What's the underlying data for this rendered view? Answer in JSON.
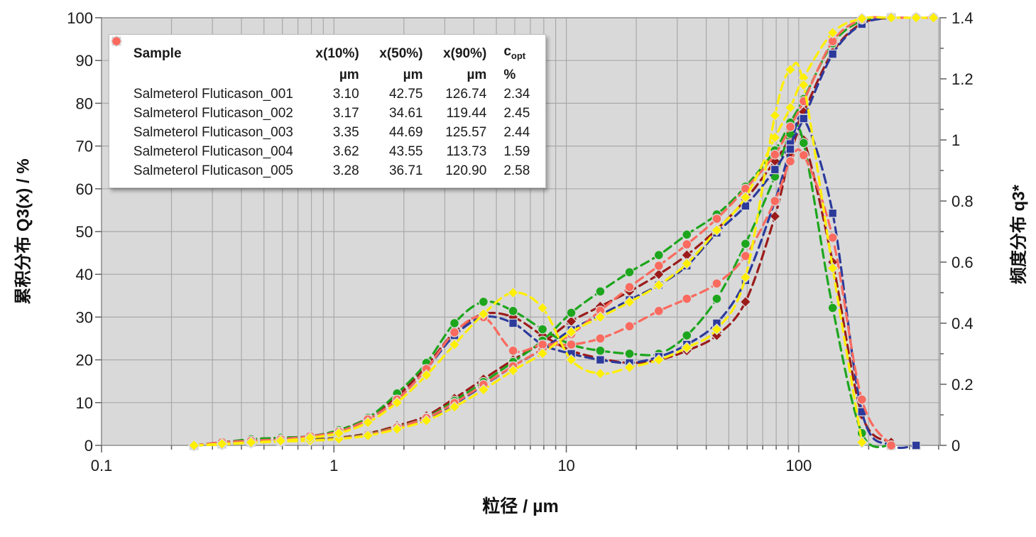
{
  "legend": {
    "header": {
      "sample": "Sample",
      "x10": "x(10%)",
      "x50": "x(50%)",
      "x90": "x(90%)",
      "copt_base": "c",
      "copt_sub": "opt"
    },
    "units": {
      "x10": "µm",
      "x50": "µm",
      "x90": "µm",
      "copt": "%"
    }
  },
  "chart_data": {
    "type": "line",
    "title": "",
    "x_axis": {
      "title": "粒径 / µm",
      "scale": "log",
      "min": 0.1,
      "max": 406,
      "tick_labels": [
        "0.1",
        "1",
        "10",
        "100"
      ],
      "tick_values": [
        0.1,
        1,
        10,
        100
      ],
      "minor_grid": true
    },
    "y_left": {
      "title": "累积分布 Q3(x) / %",
      "min": 0,
      "max": 100,
      "ticks": [
        0,
        10,
        20,
        30,
        40,
        50,
        60,
        70,
        80,
        90,
        100
      ]
    },
    "y_right": {
      "title": "频度分布 q3*",
      "min": 0,
      "max": 1.4,
      "tick_labels": [
        "0",
        "0.2",
        "0.4",
        "0.6",
        "0.8",
        "1",
        "1.2",
        "1.4"
      ],
      "tick_values": [
        0,
        0.2,
        0.4,
        0.6,
        0.8,
        1,
        1.2,
        1.4
      ]
    },
    "plot": {
      "bg": "#d9d9d9",
      "grid_color": "#a9a9a9",
      "border_color": "#8f8f8f",
      "tick_color": "#5f5f5f"
    },
    "x": [
      0.25,
      0.33,
      0.44,
      0.59,
      0.79,
      1.05,
      1.4,
      1.87,
      2.5,
      3.3,
      4.4,
      5.9,
      7.9,
      10.5,
      14,
      18.7,
      25,
      33,
      44.4,
      59,
      79,
      92,
      105,
      140,
      187,
      250,
      320,
      380
    ],
    "draw_order": [
      0,
      1,
      2,
      4,
      3
    ],
    "series": [
      {
        "name": "Salmeterol Fluticason_001",
        "marker": "diamond",
        "color": "#9b1b1b",
        "x10": "3.10",
        "x50": "42.75",
        "x90": "126.74",
        "copt": "2.34",
        "cumulative": [
          0,
          0.4,
          0.9,
          1.2,
          1.4,
          1.8,
          2.8,
          4.6,
          6.9,
          11,
          15.5,
          20,
          24,
          29,
          32.5,
          36,
          40,
          44.5,
          50.5,
          57.5,
          66.5,
          72,
          78,
          92,
          98.7,
          100,
          null,
          null
        ],
        "density": [
          0,
          0.01,
          0.02,
          0.025,
          0.03,
          0.05,
          0.09,
          0.16,
          0.26,
          0.37,
          0.43,
          0.42,
          0.36,
          0.31,
          0.285,
          0.27,
          0.28,
          0.31,
          0.36,
          0.47,
          0.75,
          0.95,
          1.0,
          0.6,
          0.1,
          0.01,
          null,
          null
        ]
      },
      {
        "name": "Salmeterol Fluticason_002",
        "marker": "circle",
        "color": "#1da61d",
        "x10": "3.17",
        "x50": "34.61",
        "x90": "119.44",
        "copt": "2.45",
        "cumulative": [
          0,
          0.3,
          0.8,
          1.1,
          1.3,
          1.7,
          2.6,
          4.3,
          6.5,
          10.4,
          14.8,
          19.5,
          24.5,
          31,
          36,
          40.5,
          44.5,
          49.3,
          54,
          60.5,
          69,
          75.5,
          81,
          94,
          99.3,
          100,
          null,
          null
        ],
        "density": [
          0,
          0.01,
          0.02,
          0.025,
          0.03,
          0.05,
          0.09,
          0.17,
          0.27,
          0.4,
          0.47,
          0.44,
          0.38,
          0.33,
          0.31,
          0.3,
          0.3,
          0.36,
          0.48,
          0.66,
          0.88,
          1.02,
          0.99,
          0.45,
          0.04,
          0,
          null,
          null
        ]
      },
      {
        "name": "Salmeterol Fluticason_003",
        "marker": "square",
        "color": "#2c3a9c",
        "x10": "3.35",
        "x50": "44.69",
        "x90": "125.57",
        "copt": "2.44",
        "cumulative": [
          0,
          0.3,
          0.7,
          1,
          1.2,
          1.6,
          2.5,
          4.1,
          6.3,
          9.7,
          14,
          18.5,
          22.5,
          27,
          30.5,
          34,
          37.5,
          42,
          49.7,
          56,
          64.5,
          70.5,
          76.5,
          91.5,
          98.5,
          100,
          null,
          null
        ],
        "density": [
          0,
          0.01,
          0.015,
          0.02,
          0.03,
          0.045,
          0.085,
          0.15,
          0.25,
          0.36,
          0.42,
          0.4,
          0.33,
          0.3,
          0.28,
          0.27,
          0.29,
          0.33,
          0.4,
          0.54,
          0.8,
          0.97,
          1.07,
          0.76,
          0.11,
          0,
          0,
          null
        ]
      },
      {
        "name": "Salmeterol Fluticason_004",
        "marker": "diamond",
        "color": "#ffef00",
        "x10": "3.62",
        "x50": "43.55",
        "x90": "113.73",
        "copt": "1.59",
        "cumulative": [
          0,
          0.2,
          0.6,
          0.9,
          1.1,
          1.5,
          2.3,
          3.8,
          5.8,
          9,
          13,
          17.5,
          21.5,
          26.5,
          30,
          33.5,
          37.5,
          42.5,
          50.3,
          58,
          72,
          79,
          86,
          96.5,
          99.8,
          100,
          100,
          100
        ],
        "density": [
          0,
          0.005,
          0.01,
          0.015,
          0.025,
          0.04,
          0.075,
          0.14,
          0.23,
          0.33,
          0.43,
          0.5,
          0.45,
          0.28,
          0.235,
          0.255,
          0.28,
          0.32,
          0.38,
          0.55,
          1.08,
          1.23,
          1.18,
          0.58,
          0.01,
          null,
          null,
          null
        ]
      },
      {
        "name": "Salmeterol Fluticason_005",
        "marker": "circle",
        "color": "#fa6a5e",
        "x10": "3.28",
        "x50": "36.71",
        "x90": "120.90",
        "copt": "2.58",
        "cumulative": [
          0,
          0.3,
          0.7,
          1,
          1.2,
          1.6,
          2.5,
          4.2,
          6.4,
          9.9,
          14.2,
          18.5,
          22.5,
          26,
          31.5,
          37,
          42,
          47,
          53,
          60,
          68,
          74.5,
          80.5,
          94.5,
          99.6,
          100,
          100,
          100
        ],
        "density": [
          0,
          0.01,
          0.015,
          0.02,
          0.03,
          0.045,
          0.085,
          0.15,
          0.25,
          0.37,
          0.42,
          0.31,
          0.33,
          0.33,
          0.35,
          0.39,
          0.44,
          0.48,
          0.53,
          0.62,
          0.8,
          0.93,
          0.95,
          0.68,
          0.15,
          0,
          null,
          null
        ]
      }
    ]
  }
}
